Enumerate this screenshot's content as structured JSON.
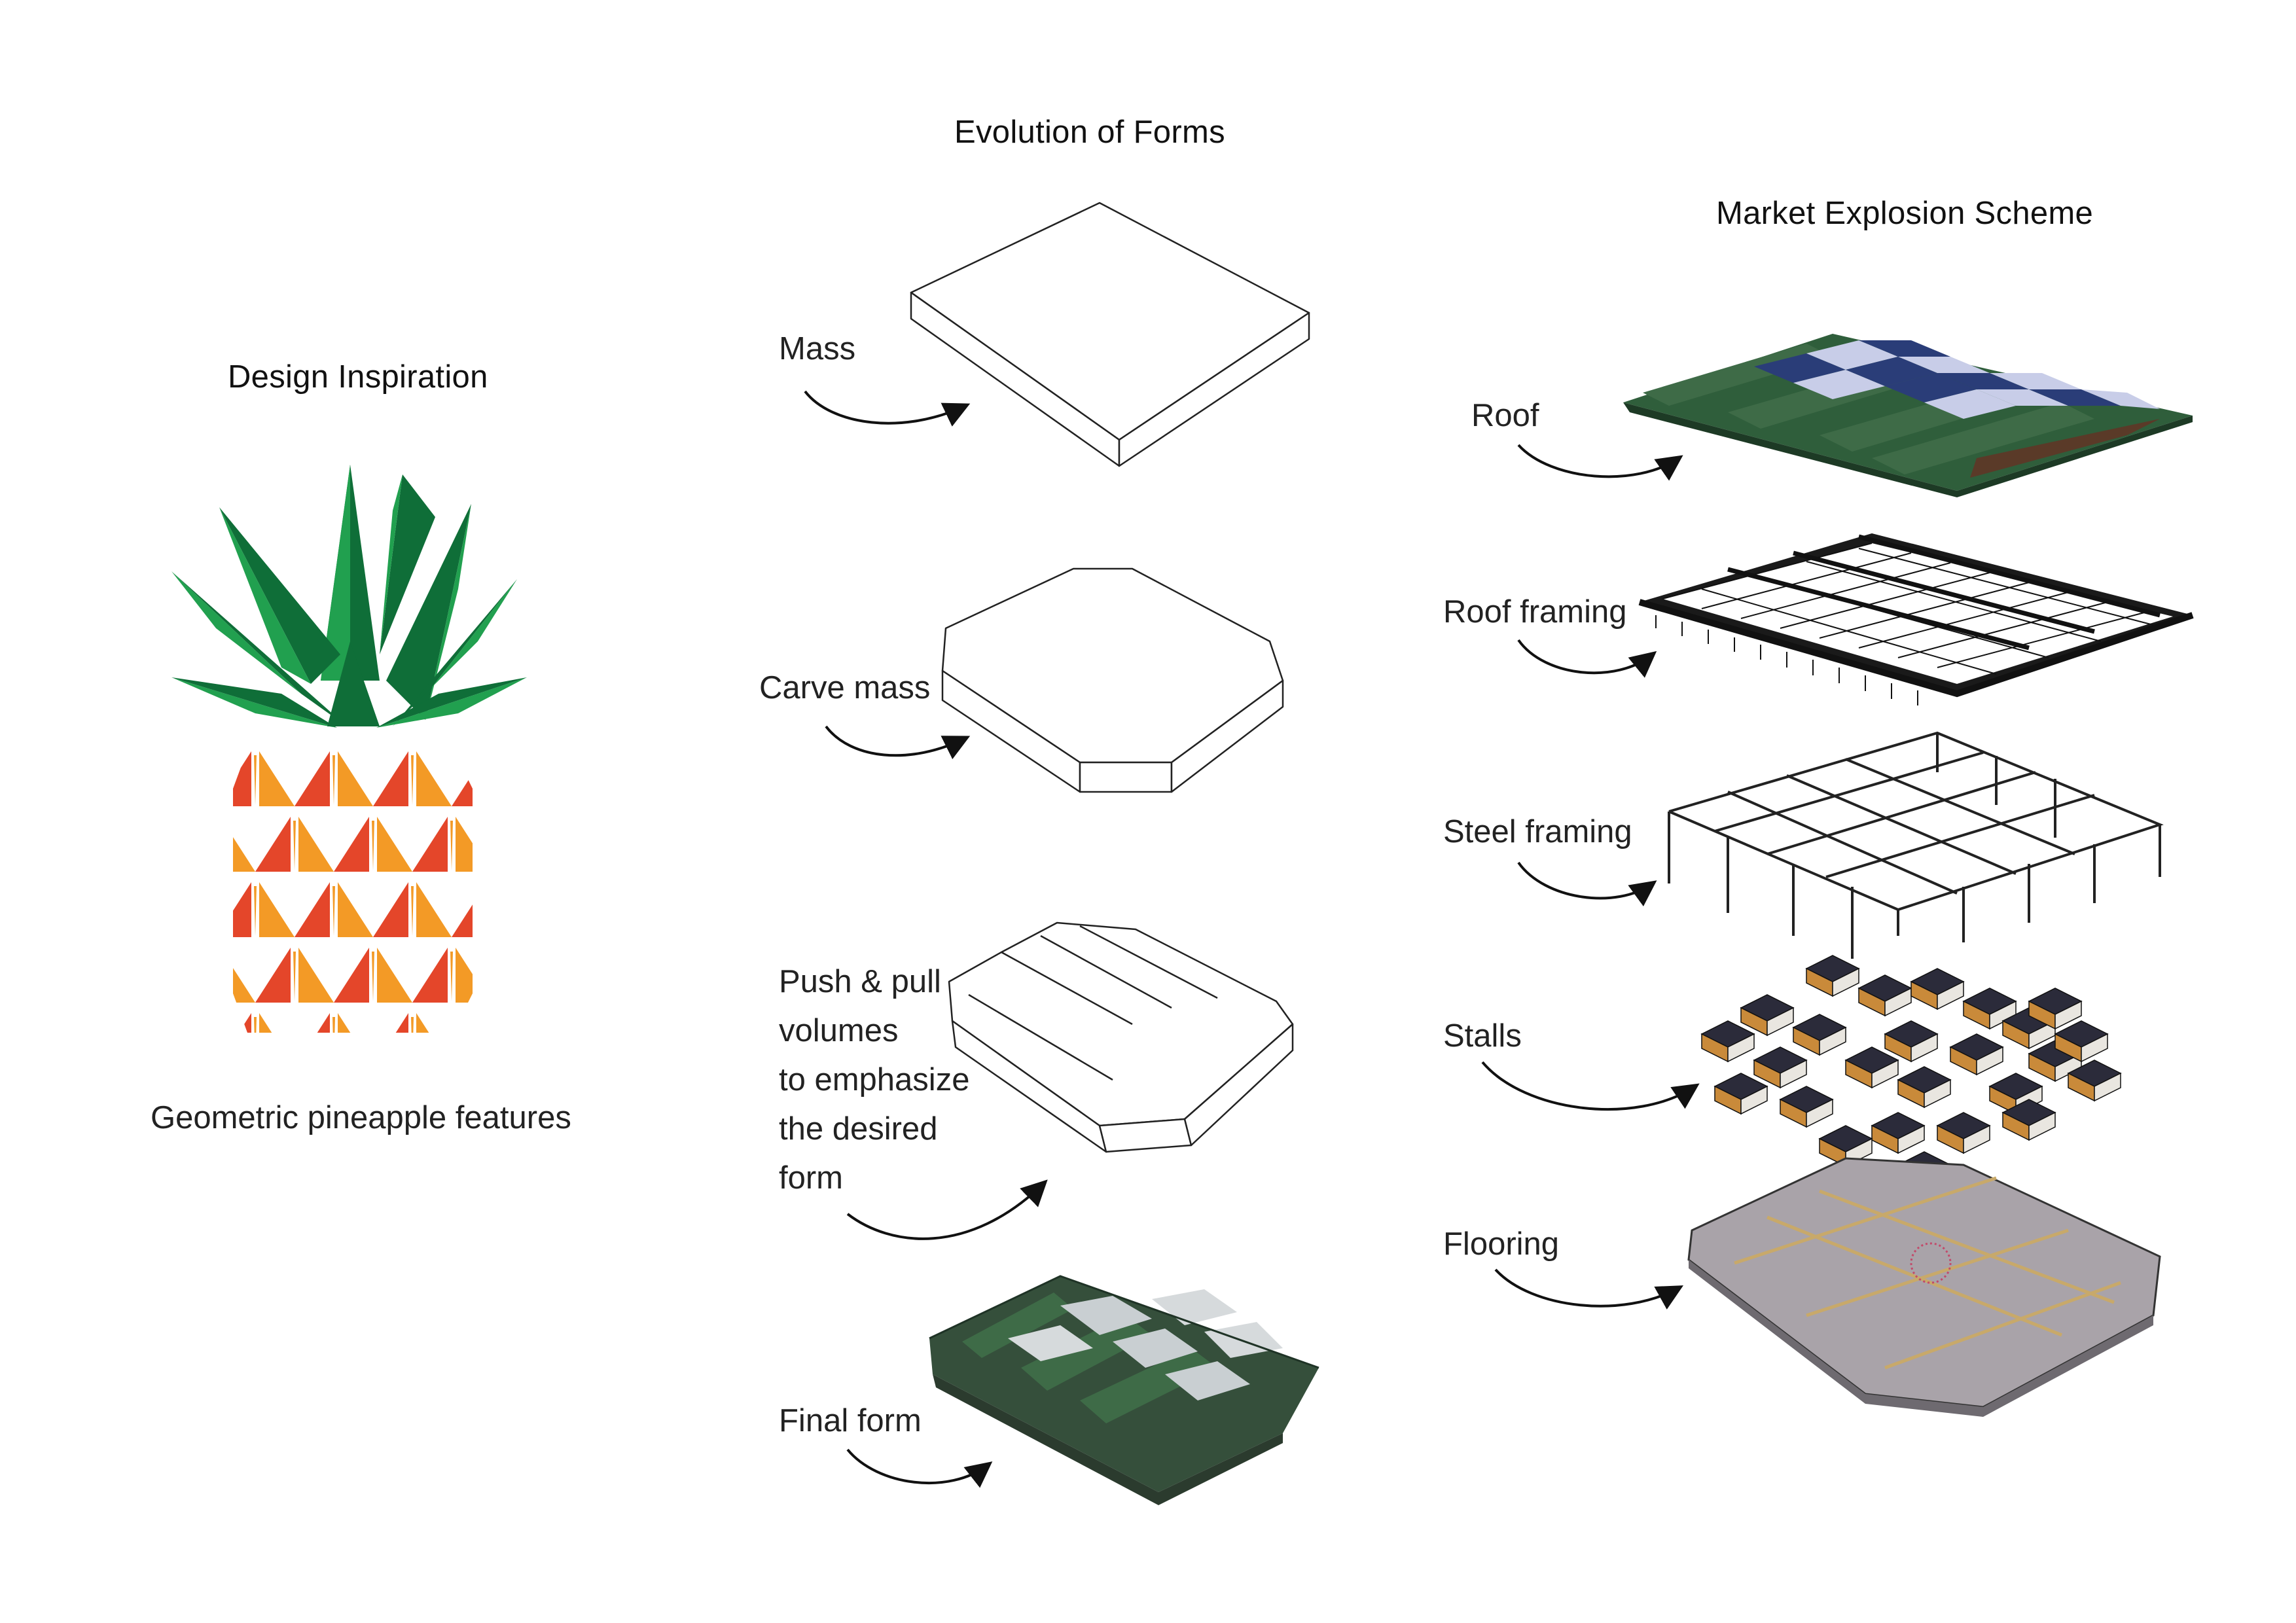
{
  "inspiration": {
    "title": "Design Inspiration",
    "caption": "Geometric pineapple features",
    "icon": "pineapple-icon",
    "colors": {
      "leaf_dark": "#0f6e38",
      "leaf_light": "#21a04f",
      "fruit_red": "#e4462a",
      "fruit_orange": "#f39a26"
    }
  },
  "evolution": {
    "title": "Evolution of Forms",
    "steps": [
      {
        "label": "Mass"
      },
      {
        "label": "Carve mass"
      },
      {
        "label_lines": [
          "Push & pull",
          "volumes",
          "to emphasize",
          "the desired",
          "form"
        ]
      },
      {
        "label": "Final form"
      }
    ]
  },
  "explosion": {
    "title": "Market Explosion Scheme",
    "layers": [
      "Roof",
      "Roof framing",
      "Steel framing",
      "Stalls",
      "Flooring"
    ],
    "colors": {
      "roof_green": "#2f5e3b",
      "solar_blue": "#2a3d78",
      "floor_grey": "#a9a3a9",
      "stall_dark": "#2b2b3a",
      "stall_wood": "#c98a3a"
    }
  }
}
